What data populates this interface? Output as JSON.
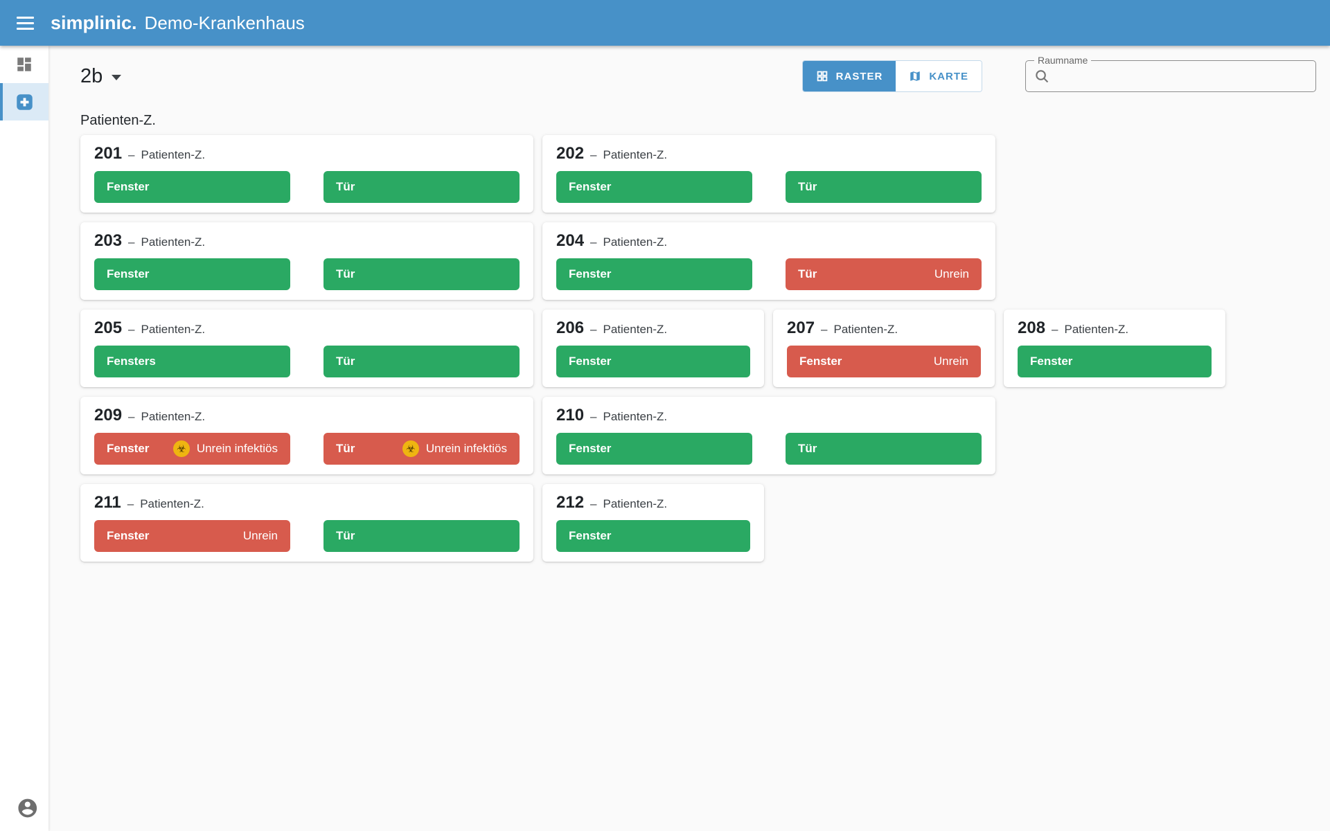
{
  "colors": {
    "blue": "#4791c8",
    "green": "#2aa963",
    "red": "#d75b4d",
    "selected": "#dbeaf6"
  },
  "app_bar": {
    "brand": "simplinic.",
    "context": "Demo-Krankenhaus"
  },
  "toolbar": {
    "floor_selector": "2b",
    "view_toggle": [
      {
        "label": "RASTER",
        "selected": true
      },
      {
        "label": "KARTE",
        "selected": false
      }
    ],
    "search": {
      "label": "Raumname",
      "value": ""
    }
  },
  "section": {
    "label": "Patienten-Z.",
    "separator": "–"
  },
  "icons": {
    "biohazard": "☣"
  },
  "rooms": [
    {
      "number": "201",
      "type": "Patienten-Z.",
      "size": "wide",
      "badges": [
        {
          "label": "Fenster",
          "state": "clean",
          "status": "",
          "infectious": false
        },
        {
          "label": "Tür",
          "state": "clean",
          "status": "",
          "infectious": false
        }
      ]
    },
    {
      "number": "202",
      "type": "Patienten-Z.",
      "size": "wide",
      "badges": [
        {
          "label": "Fenster",
          "state": "clean",
          "status": "",
          "infectious": false
        },
        {
          "label": "Tür",
          "state": "clean",
          "status": "",
          "infectious": false
        }
      ]
    },
    {
      "number": "203",
      "type": "Patienten-Z.",
      "size": "wide",
      "badges": [
        {
          "label": "Fenster",
          "state": "clean",
          "status": "",
          "infectious": false
        },
        {
          "label": "Tür",
          "state": "clean",
          "status": "",
          "infectious": false
        }
      ]
    },
    {
      "number": "204",
      "type": "Patienten-Z.",
      "size": "wide",
      "badges": [
        {
          "label": "Fenster",
          "state": "clean",
          "status": "",
          "infectious": false
        },
        {
          "label": "Tür",
          "state": "dirty",
          "status": "Unrein",
          "infectious": false
        }
      ]
    },
    {
      "number": "205",
      "type": "Patienten-Z.",
      "size": "wide",
      "badges": [
        {
          "label": "Fensters",
          "state": "clean",
          "status": "",
          "infectious": false
        },
        {
          "label": "Tür",
          "state": "clean",
          "status": "",
          "infectious": false
        }
      ]
    },
    {
      "number": "206",
      "type": "Patienten-Z.",
      "size": "narrow",
      "badges": [
        {
          "label": "Fenster",
          "state": "clean",
          "status": "",
          "infectious": false
        }
      ]
    },
    {
      "number": "207",
      "type": "Patienten-Z.",
      "size": "narrow",
      "badges": [
        {
          "label": "Fenster",
          "state": "dirty",
          "status": "Unrein",
          "infectious": false
        }
      ]
    },
    {
      "number": "208",
      "type": "Patienten-Z.",
      "size": "narrow",
      "badges": [
        {
          "label": "Fenster",
          "state": "clean",
          "status": "",
          "infectious": false
        }
      ]
    },
    {
      "number": "209",
      "type": "Patienten-Z.",
      "size": "wide",
      "badges": [
        {
          "label": "Fenster",
          "state": "infectious",
          "status": "Unrein infektiös",
          "infectious": true
        },
        {
          "label": "Tür",
          "state": "infectious",
          "status": "Unrein infektiös",
          "infectious": true
        }
      ]
    },
    {
      "number": "210",
      "type": "Patienten-Z.",
      "size": "wide",
      "badges": [
        {
          "label": "Fenster",
          "state": "clean",
          "status": "",
          "infectious": false
        },
        {
          "label": "Tür",
          "state": "clean",
          "status": "",
          "infectious": false
        }
      ]
    },
    {
      "number": "211",
      "type": "Patienten-Z.",
      "size": "wide",
      "badges": [
        {
          "label": "Fenster",
          "state": "dirty",
          "status": "Unrein",
          "infectious": false
        },
        {
          "label": "Tür",
          "state": "clean",
          "status": "",
          "infectious": false
        }
      ]
    },
    {
      "number": "212",
      "type": "Patienten-Z.",
      "size": "narrow",
      "badges": [
        {
          "label": "Fenster",
          "state": "clean",
          "status": "",
          "infectious": false
        }
      ]
    }
  ]
}
